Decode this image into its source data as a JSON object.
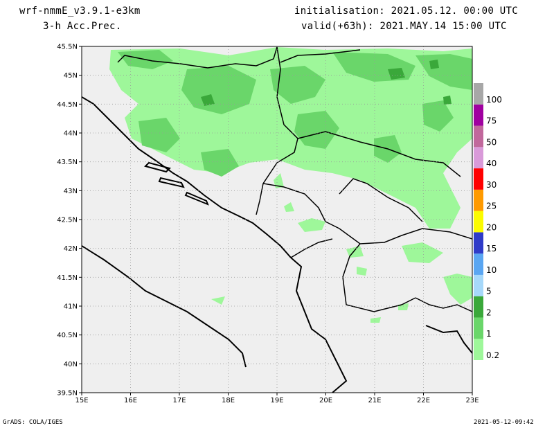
{
  "header": {
    "model": "wrf-nmmE_v3.9.1-e3km",
    "field": "3-h Acc.Prec.",
    "init": "initialisation: 2021.05.12. 00:00 UTC",
    "valid": "valid(+63h): 2021.MAY.14 15:00 UTC"
  },
  "footer": {
    "left": "GrADS: COLA/IGES",
    "right": "2021-05-12-09:42"
  },
  "map": {
    "lat_labels": [
      "45.5N",
      "45N",
      "44.5N",
      "44N",
      "43.5N",
      "43N",
      "42.5N",
      "42N",
      "41.5N",
      "41N",
      "40.5N",
      "40N",
      "39.5N"
    ],
    "lon_labels": [
      "15E",
      "16E",
      "17E",
      "18E",
      "19E",
      "20E",
      "21E",
      "22E",
      "23E"
    ],
    "colors": {
      "land": "#efefef",
      "grid": "#999999",
      "coast": "#000000"
    }
  },
  "legend": {
    "levels": [
      {
        "label": "0.2",
        "color": "#9ef79a"
      },
      {
        "label": "1",
        "color": "#6ad66a"
      },
      {
        "label": "2",
        "color": "#3aa83a"
      },
      {
        "label": "5",
        "color": "#a6d8fa"
      },
      {
        "label": "10",
        "color": "#5aa6f2"
      },
      {
        "label": "15",
        "color": "#2f3bc8"
      },
      {
        "label": "20",
        "color": "#fbfb00"
      },
      {
        "label": "25",
        "color": "#ff9a00"
      },
      {
        "label": "30",
        "color": "#ff0000"
      },
      {
        "label": "40",
        "color": "#d99ad9"
      },
      {
        "label": "50",
        "color": "#c1689c"
      },
      {
        "label": "75",
        "color": "#a000a0"
      },
      {
        "label": "100",
        "color": "#a7a7a7"
      }
    ]
  }
}
